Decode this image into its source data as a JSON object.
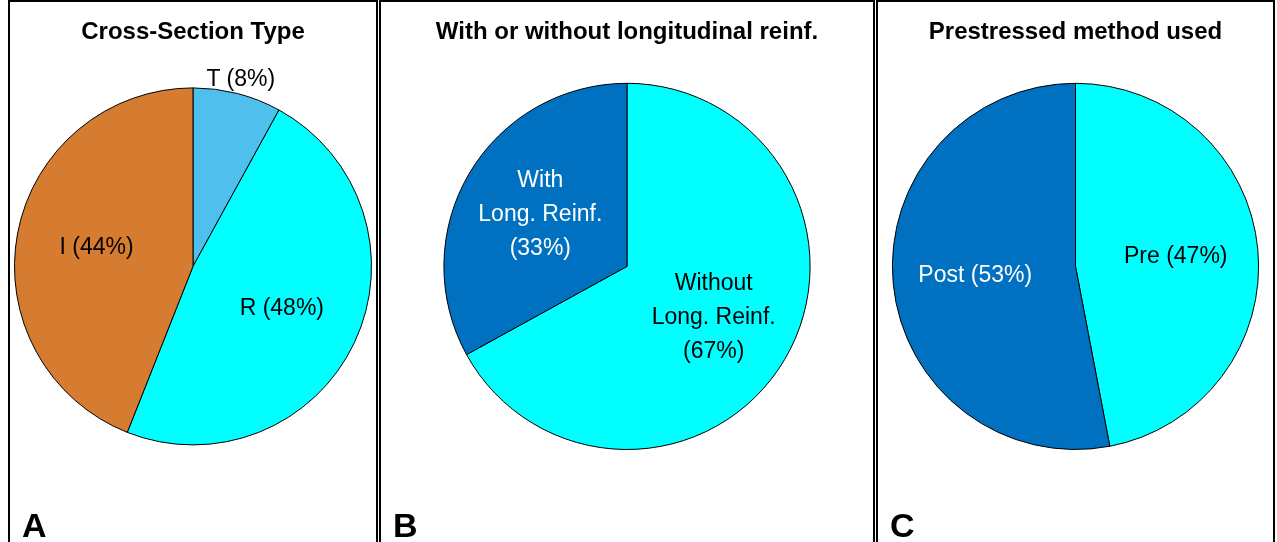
{
  "chart_data": [
    {
      "type": "pie",
      "title": "Cross-Section Type",
      "categories": [
        "T (8%)",
        "R (48%)",
        "I (44%)"
      ],
      "values": [
        8,
        48,
        44
      ],
      "colors": [
        "#4fc0ee",
        "#00ffff",
        "#d67c30"
      ],
      "annotations": [
        "A"
      ]
    },
    {
      "type": "pie",
      "title": "With or without longitudinal reinf.",
      "categories": [
        "Without\nLong. Reinf.\n(67%)",
        "With\nLong. Reinf.\n(33%)"
      ],
      "values": [
        67,
        33
      ],
      "colors": [
        "#00ffff",
        "#0070c0"
      ],
      "annotations": [
        "B"
      ]
    },
    {
      "type": "pie",
      "title": "Prestressed method used",
      "categories": [
        "Pre (47%)",
        "Post (53%)"
      ],
      "values": [
        47,
        53
      ],
      "colors": [
        "#00ffff",
        "#0070c0"
      ],
      "annotations": [
        "C"
      ]
    }
  ]
}
